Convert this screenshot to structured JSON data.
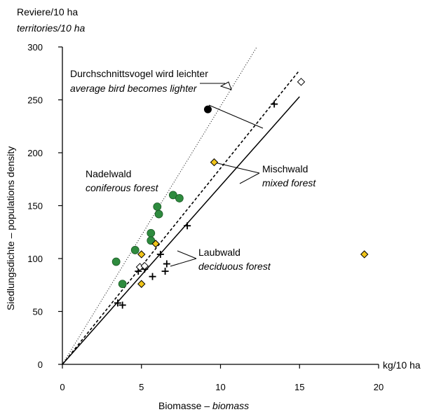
{
  "chart_data": {
    "type": "scatter",
    "title": "",
    "ylabel_top": "Reviere/10 ha",
    "ylabel_top_en": "territories/10 ha",
    "ylabel_side": "Siedlungsdichte – populations density",
    "xunit": "kg/10 ha",
    "xlabel_de": "Biomasse – ",
    "xlabel_en": "biomass",
    "xlim": [
      0,
      20
    ],
    "ylim": [
      0,
      300
    ],
    "xticks": [
      0,
      5,
      10,
      15,
      20
    ],
    "yticks": [
      0,
      50,
      100,
      150,
      200,
      250,
      300
    ],
    "grid": false,
    "colors": {
      "green": "#2e8b3e",
      "yellow": "#f0c419",
      "black": "#000000"
    },
    "series": [
      {
        "marker": "circle-green",
        "points": [
          [
            3.4,
            97
          ],
          [
            3.8,
            76
          ],
          [
            4.6,
            108
          ],
          [
            5.6,
            124
          ],
          [
            5.6,
            117
          ],
          [
            6.0,
            149
          ],
          [
            6.1,
            142
          ],
          [
            7.0,
            160
          ],
          [
            7.4,
            157
          ]
        ]
      },
      {
        "marker": "circle-black",
        "points": [
          [
            9.2,
            241
          ]
        ]
      },
      {
        "marker": "plus",
        "points": [
          [
            3.5,
            58
          ],
          [
            3.8,
            56
          ],
          [
            4.8,
            88
          ],
          [
            4.9,
            92
          ],
          [
            5.2,
            90
          ],
          [
            5.7,
            83
          ],
          [
            6.2,
            104
          ],
          [
            6.5,
            88
          ],
          [
            6.6,
            95
          ],
          [
            7.9,
            131
          ],
          [
            13.4,
            246
          ]
        ]
      },
      {
        "marker": "diamond-yellow",
        "points": [
          [
            5.0,
            76
          ],
          [
            5.0,
            104
          ],
          [
            5.9,
            114
          ],
          [
            9.6,
            191
          ],
          [
            19.1,
            104
          ]
        ]
      },
      {
        "marker": "diamond-white",
        "points": [
          [
            4.9,
            92
          ],
          [
            5.2,
            93
          ],
          [
            15.1,
            267
          ]
        ]
      }
    ],
    "lines": [
      {
        "style": "solid",
        "from": [
          0,
          0
        ],
        "to": [
          15,
          253
        ]
      },
      {
        "style": "dashed",
        "from": [
          0,
          0
        ],
        "to": [
          15,
          278
        ]
      },
      {
        "style": "dotted",
        "from": [
          0,
          0
        ],
        "to": [
          12.3,
          300
        ]
      }
    ],
    "annotations": {
      "lighter_de": "Durchschnittsvogel wird leichter",
      "lighter_en": "average bird becomes lighter",
      "mixed_de": "Mischwald",
      "mixed_en": "mixed forest",
      "coniferous_de": "Nadelwald",
      "coniferous_en": "coniferous forest",
      "deciduous_de": "Laubwald",
      "deciduous_en": "deciduous forest"
    }
  }
}
